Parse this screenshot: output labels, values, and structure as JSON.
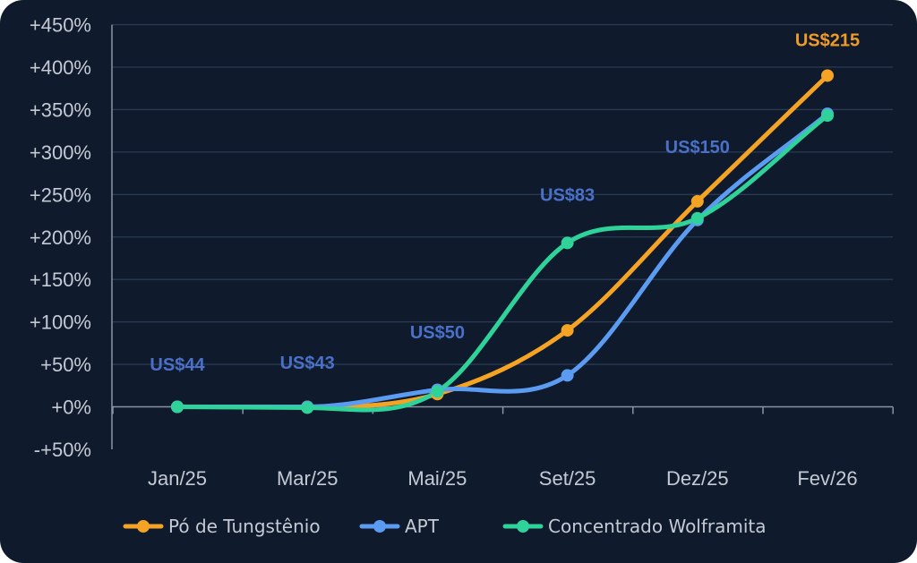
{
  "colors": {
    "background": "#0f1a2c",
    "grid": "#2a3a52",
    "axis": "#8a94a4",
    "text": "#c4cad4",
    "annotation_default": "#4a70c8",
    "annotation_highlight": "#f09a28"
  },
  "chart_data": {
    "type": "line",
    "title": "",
    "xlabel": "",
    "ylabel": "",
    "categories": [
      "Jan/25",
      "Mar/25",
      "Mai/25",
      "Set/25",
      "Dez/25",
      "Fev/26"
    ],
    "y_tick_labels": [
      "-+50%",
      "+0%",
      "+50%",
      "+100%",
      "+150%",
      "+200%",
      "+250%",
      "+300%",
      "+350%",
      "+400%",
      "+450%"
    ],
    "y_ticks": [
      -50,
      0,
      50,
      100,
      150,
      200,
      250,
      300,
      350,
      400,
      450
    ],
    "ylim": [
      -50,
      450
    ],
    "grid": true,
    "legend_position": "bottom",
    "series": [
      {
        "name": "Pó de Tungstênio",
        "color": "#f5a324",
        "values": [
          0,
          0,
          15,
          90,
          242,
          390
        ]
      },
      {
        "name": "APT",
        "color": "#5b9cf2",
        "values": [
          0,
          0,
          20,
          37,
          220,
          345
        ]
      },
      {
        "name": "Concentrado Wolframita",
        "color": "#2fd39a",
        "values": [
          0,
          -1,
          18,
          193,
          222,
          343
        ]
      }
    ],
    "annotations": [
      {
        "category_index": 0,
        "y": 50,
        "text": "US$44",
        "color": "#4a70c8"
      },
      {
        "category_index": 1,
        "y": 52,
        "text": "US$43",
        "color": "#4a70c8"
      },
      {
        "category_index": 2,
        "y": 88,
        "text": "US$50",
        "color": "#4a70c8"
      },
      {
        "category_index": 3,
        "y": 250,
        "text": "US$83",
        "color": "#4a70c8"
      },
      {
        "category_index": 4,
        "y": 306,
        "text": "US$150",
        "color": "#4a70c8"
      },
      {
        "category_index": 5,
        "y": 432,
        "text": "US$215",
        "color": "#f09a28"
      }
    ]
  }
}
